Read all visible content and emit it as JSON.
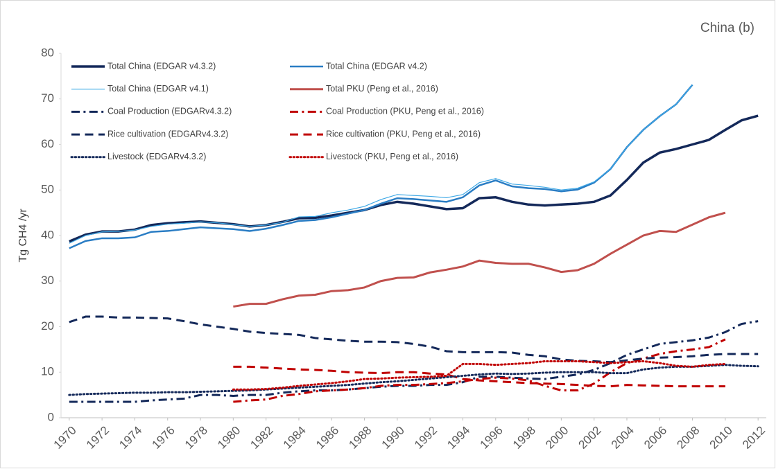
{
  "chart_data": {
    "type": "line",
    "title": "China (b)",
    "y_label": "Tg CH4 /yr",
    "x": [
      1970,
      1971,
      1972,
      1973,
      1974,
      1975,
      1976,
      1977,
      1978,
      1979,
      1980,
      1981,
      1982,
      1983,
      1984,
      1985,
      1986,
      1987,
      1988,
      1989,
      1990,
      1991,
      1992,
      1993,
      1994,
      1995,
      1996,
      1997,
      1998,
      1999,
      2000,
      2001,
      2002,
      2003,
      2004,
      2005,
      2006,
      2007,
      2008,
      2009,
      2010,
      2011,
      2012
    ],
    "xlim": [
      1969.5,
      2012.5
    ],
    "xticks": [
      1970,
      1972,
      1974,
      1976,
      1978,
      1980,
      1982,
      1984,
      1986,
      1988,
      1990,
      1992,
      1994,
      1996,
      1998,
      2000,
      2002,
      2004,
      2006,
      2008,
      2010,
      2012
    ],
    "ylim": [
      0,
      80
    ],
    "yticks": [
      0,
      10,
      20,
      30,
      40,
      50,
      60,
      70,
      80
    ],
    "grid": false,
    "series": [
      {
        "name": "Total China (EDGAR v4.3.2)",
        "color": "#14295a",
        "width": 3.5,
        "dash": "solid",
        "values": [
          38.7,
          40.2,
          40.9,
          40.9,
          41.3,
          42.3,
          42.7,
          42.9,
          43.1,
          42.8,
          42.5,
          42.0,
          42.3,
          43.0,
          43.8,
          43.9,
          44.4,
          45.0,
          45.6,
          46.7,
          47.4,
          47.0,
          46.4,
          45.8,
          46.0,
          48.2,
          48.4,
          47.4,
          46.8,
          46.6,
          46.8,
          47.0,
          47.4,
          48.8,
          52.2,
          56.0,
          58.2,
          59.0,
          60.0,
          61.0,
          63.2,
          65.3,
          66.3
        ]
      },
      {
        "name": "Total China (EDGAR v4.2)",
        "color": "#2a7dc4",
        "width": 2.5,
        "dash": "solid",
        "values": [
          37.2,
          38.8,
          39.4,
          39.4,
          39.6,
          40.8,
          41.0,
          41.4,
          41.8,
          41.6,
          41.4,
          41.0,
          41.5,
          42.3,
          43.2,
          43.4,
          44.0,
          44.8,
          45.6,
          47.0,
          48.2,
          48.0,
          47.7,
          47.4,
          48.4,
          51.0,
          52.1,
          50.8,
          50.4,
          50.2,
          49.7,
          50.1,
          51.6,
          54.6,
          59.4,
          63.2,
          66.2,
          68.8,
          73.1,
          null,
          null,
          null,
          null
        ]
      },
      {
        "name": "Total China (EDGAR v4.1)",
        "color": "#3fa9e6",
        "width": 1.2,
        "dash": "solid",
        "values": [
          38.3,
          40.0,
          40.8,
          40.9,
          41.2,
          42.0,
          42.5,
          42.7,
          43.0,
          42.8,
          42.4,
          42.0,
          42.3,
          42.9,
          44.1,
          44.2,
          45.0,
          45.6,
          46.4,
          47.9,
          49.0,
          48.8,
          48.6,
          48.3,
          49.0,
          51.6,
          52.5,
          51.3,
          51.0,
          50.6,
          50.0,
          50.4,
          51.8,
          54.6,
          59.4,
          63.2,
          66.2,
          68.8,
          73.1,
          null,
          null,
          null,
          null
        ]
      },
      {
        "name": "Total PKU (Peng et al., 2016)",
        "color": "#c0504d",
        "width": 3,
        "dash": "solid",
        "values": [
          null,
          null,
          null,
          null,
          null,
          null,
          null,
          null,
          null,
          null,
          24.4,
          25.0,
          25.0,
          26.0,
          26.8,
          27.0,
          27.8,
          28.0,
          28.6,
          30.0,
          30.7,
          30.8,
          31.9,
          32.5,
          33.2,
          34.5,
          34.0,
          33.8,
          33.8,
          33.0,
          32.0,
          32.4,
          33.8,
          36.0,
          38.0,
          40.0,
          41.0,
          40.8,
          42.4,
          44.0,
          45.0,
          null,
          null
        ]
      },
      {
        "name": "Coal Production (EDGARv4.3.2)",
        "color": "#14295a",
        "width": 3,
        "dash": "dashdot",
        "values": [
          3.5,
          3.5,
          3.5,
          3.5,
          3.5,
          3.8,
          4.0,
          4.2,
          5.0,
          5.0,
          4.8,
          5.0,
          5.0,
          5.5,
          5.8,
          6.0,
          6.0,
          6.2,
          6.5,
          6.8,
          7.0,
          7.0,
          7.2,
          7.2,
          7.8,
          9.0,
          9.0,
          8.8,
          8.6,
          8.5,
          9.0,
          9.5,
          10.5,
          12.0,
          13.8,
          15.0,
          16.2,
          16.6,
          17.0,
          17.6,
          18.8,
          20.6,
          21.2
        ]
      },
      {
        "name": "Coal Production (PKU, Peng et al., 2016)",
        "color": "#c00000",
        "width": 3,
        "dash": "dashdot",
        "values": [
          null,
          null,
          null,
          null,
          null,
          null,
          null,
          null,
          null,
          null,
          3.5,
          3.8,
          4.0,
          4.8,
          5.2,
          5.8,
          6.0,
          6.2,
          6.5,
          7.0,
          7.2,
          7.2,
          7.4,
          7.6,
          8.0,
          8.5,
          8.8,
          8.6,
          8.2,
          7.0,
          6.0,
          6.0,
          7.5,
          10.0,
          12.0,
          13.0,
          14.0,
          14.6,
          15.0,
          15.5,
          17.2,
          null,
          null
        ]
      },
      {
        "name": "Rice cultivation (EDGARv4.3.2)",
        "color": "#14295a",
        "width": 3,
        "dash": "dash",
        "values": [
          21.0,
          22.2,
          22.2,
          22.0,
          22.0,
          21.9,
          21.8,
          21.2,
          20.5,
          20.0,
          19.5,
          18.9,
          18.6,
          18.4,
          18.2,
          17.5,
          17.2,
          16.9,
          16.7,
          16.7,
          16.6,
          16.2,
          15.6,
          14.6,
          14.4,
          14.4,
          14.4,
          14.3,
          13.8,
          13.5,
          12.8,
          12.5,
          12.4,
          12.2,
          12.6,
          13.0,
          13.2,
          13.3,
          13.5,
          13.8,
          14.0,
          14.0,
          14.0
        ]
      },
      {
        "name": "Rice cultivation (PKU, Peng et al., 2016)",
        "color": "#c00000",
        "width": 3,
        "dash": "dash",
        "values": [
          null,
          null,
          null,
          null,
          null,
          null,
          null,
          null,
          null,
          null,
          11.2,
          11.2,
          11.0,
          10.8,
          10.6,
          10.5,
          10.3,
          10.0,
          9.9,
          9.8,
          10.0,
          10.0,
          9.7,
          9.5,
          8.5,
          8.2,
          8.0,
          7.8,
          7.6,
          7.5,
          7.4,
          7.2,
          7.0,
          6.9,
          7.2,
          7.1,
          7.0,
          6.9,
          6.9,
          6.9,
          6.9,
          null,
          null
        ]
      },
      {
        "name": "Livestock (EDGARv4.3.2)",
        "color": "#14295a",
        "width": 3,
        "dash": "dot",
        "values": [
          5.0,
          5.2,
          5.3,
          5.4,
          5.5,
          5.5,
          5.6,
          5.6,
          5.7,
          5.8,
          5.9,
          6.0,
          6.2,
          6.4,
          6.6,
          6.8,
          7.0,
          7.2,
          7.5,
          7.8,
          8.0,
          8.3,
          8.6,
          8.9,
          9.2,
          9.5,
          9.7,
          9.6,
          9.7,
          9.9,
          10.0,
          10.0,
          10.0,
          9.8,
          9.8,
          10.6,
          11.0,
          11.2,
          11.2,
          11.4,
          11.6,
          11.4,
          11.3
        ]
      },
      {
        "name": "Livestock (PKU, Peng et al., 2016)",
        "color": "#c00000",
        "width": 3,
        "dash": "dot",
        "values": [
          null,
          null,
          null,
          null,
          null,
          null,
          null,
          null,
          null,
          null,
          6.2,
          6.2,
          6.3,
          6.6,
          7.0,
          7.3,
          7.6,
          8.0,
          8.5,
          8.6,
          8.8,
          8.9,
          9.0,
          9.2,
          11.8,
          11.8,
          11.6,
          11.8,
          12.0,
          12.4,
          12.4,
          12.4,
          12.2,
          12.0,
          12.2,
          12.4,
          12.0,
          11.4,
          11.2,
          11.6,
          11.8,
          null,
          null
        ]
      }
    ]
  }
}
